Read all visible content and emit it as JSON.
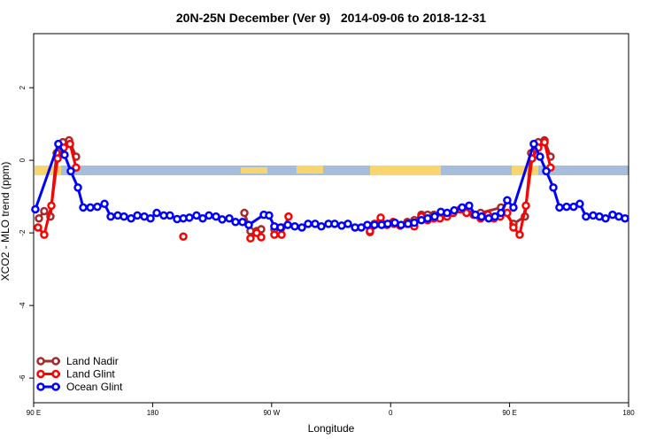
{
  "chart_data": {
    "type": "line",
    "title": "20N-25N December (Ver 9)   2014-09-06 to 2018-12-31",
    "x_label": "Longitude",
    "y_label": "XCO2 - MLO trend (ppm)",
    "xlim": [
      90,
      540
    ],
    "xticks": [
      {
        "value": 90,
        "label": "90 E"
      },
      180,
      {
        "value": 270,
        "label": "90 W"
      },
      {
        "value": 360,
        "label": "0"
      },
      {
        "value": 450,
        "label": "90 E"
      },
      {
        "value": 540,
        "label": "180"
      }
    ],
    "ylim": [
      -6.68,
      3.49
    ],
    "yticks": [
      2,
      0,
      -2,
      -4,
      -6
    ],
    "legend": "bottom-left",
    "series": [
      {
        "name": "Land Nadir",
        "color": "#a52a2a",
        "x": [
          94.0,
          98.0,
          102.7,
          107.4,
          112.1,
          116.8,
          122.1,
          null,
          249.4,
          254.0,
          258.7,
          262.1,
          null,
          272.1,
          277.5,
          null,
          344.4,
          352.5,
          362.5,
          372.6,
          377.9,
          383.3,
          388.0,
          392.7,
          416.8,
          428.1,
          443.5,
          452.9,
          461.6,
          466.3,
          471.7,
          476.4,
          481.0
        ],
        "values": [
          -1.6,
          -1.4,
          -1.55,
          0.2,
          0.5,
          0.55,
          0.1,
          null,
          -1.45,
          -1.95,
          -1.95,
          -1.9,
          null,
          -1.9,
          -1.85,
          null,
          -1.98,
          -1.7,
          -1.75,
          -1.7,
          -1.65,
          -1.5,
          -1.5,
          -1.5,
          -1.4,
          -1.45,
          -1.3,
          -1.75,
          -1.55,
          0.2,
          0.5,
          0.55,
          0.1
        ]
      },
      {
        "name": "Land Glint",
        "color": "#ff0000",
        "x": [
          93.3,
          98.0,
          103.4,
          108.1,
          112.8,
          117.5,
          122.1,
          null,
          203.2,
          null,
          254.0,
          258.7,
          262.1,
          null,
          272.1,
          277.5,
          282.8,
          null,
          344.4,
          347.8,
          352.5,
          357.2,
          361.9,
          367.2,
          372.6,
          377.9,
          383.3,
          388.0,
          392.7,
          397.3,
          402.7,
          407.4,
          412.7,
          417.4,
          422.8,
          428.1,
          433.5,
          438.2,
          442.9,
          448.2,
          452.9,
          457.6,
          462.3,
          467.0,
          471.7,
          476.4,
          481.0
        ],
        "values": [
          -1.85,
          -2.05,
          -1.25,
          0.05,
          0.35,
          0.45,
          -0.2,
          null,
          -2.1,
          null,
          -2.15,
          -2.0,
          -2.12,
          null,
          -2.05,
          -2.05,
          -1.55,
          null,
          -1.95,
          -1.75,
          -1.58,
          -1.78,
          -1.7,
          -1.8,
          -1.75,
          -1.82,
          -1.55,
          -1.65,
          -1.6,
          -1.6,
          -1.55,
          -1.45,
          -1.35,
          -1.45,
          -1.5,
          -1.6,
          -1.5,
          -1.6,
          -1.55,
          -1.45,
          -1.85,
          -2.05,
          -1.25,
          0.05,
          0.35,
          0.5,
          -0.2
        ]
      },
      {
        "name": "Ocean Glint",
        "color": "#0000ff",
        "x": [
          91.3,
          108.7,
          113.4,
          118.1,
          123.5,
          127.5,
          132.9,
          138.2,
          143.6,
          148.3,
          153.6,
          158.3,
          163.7,
          168.4,
          173.7,
          178.4,
          183.1,
          188.4,
          193.1,
          198.5,
          203.2,
          207.8,
          213.2,
          217.9,
          222.6,
          227.9,
          232.6,
          238.0,
          242.7,
          248.0,
          252.7,
          264.1,
          268.1,
          272.1,
          276.8,
          282.2,
          287.5,
          292.9,
          297.6,
          302.9,
          307.6,
          313.0,
          317.7,
          323.0,
          327.7,
          333.1,
          337.8,
          342.4,
          347.8,
          353.2,
          357.8,
          363.2,
          367.9,
          373.2,
          377.9,
          383.3,
          388.0,
          393.3,
          398.0,
          402.7,
          408.1,
          414.1,
          419.4,
          424.1,
          428.8,
          434.2,
          438.9,
          443.5,
          448.2,
          452.9,
          468.3,
          473.0,
          477.7,
          483.1,
          487.7,
          493.1,
          498.4,
          503.1,
          507.8,
          513.2,
          517.9,
          522.6,
          527.9,
          532.6,
          537.3
        ],
        "values": [
          -1.35,
          0.45,
          0.15,
          -0.3,
          -0.75,
          -1.3,
          -1.3,
          -1.28,
          -1.2,
          -1.55,
          -1.52,
          -1.55,
          -1.6,
          -1.52,
          -1.55,
          -1.6,
          -1.45,
          -1.52,
          -1.52,
          -1.62,
          -1.6,
          -1.58,
          -1.52,
          -1.6,
          -1.52,
          -1.55,
          -1.63,
          -1.6,
          -1.7,
          -1.7,
          -1.78,
          -1.5,
          -1.52,
          -1.82,
          -1.85,
          -1.78,
          -1.82,
          -1.85,
          -1.75,
          -1.75,
          -1.82,
          -1.75,
          -1.75,
          -1.8,
          -1.75,
          -1.85,
          -1.85,
          -1.78,
          -1.78,
          -1.78,
          -1.75,
          -1.72,
          -1.78,
          -1.75,
          -1.72,
          -1.65,
          -1.6,
          -1.55,
          -1.42,
          -1.45,
          -1.38,
          -1.3,
          -1.25,
          -1.5,
          -1.55,
          -1.6,
          -1.55,
          -1.45,
          -1.1,
          -1.3,
          0.45,
          0.1,
          -0.3,
          -0.75,
          -1.3,
          -1.28,
          -1.28,
          -1.2,
          -1.55,
          -1.52,
          -1.55,
          -1.6,
          -1.5,
          -1.55,
          -1.6
        ]
      }
    ]
  }
}
